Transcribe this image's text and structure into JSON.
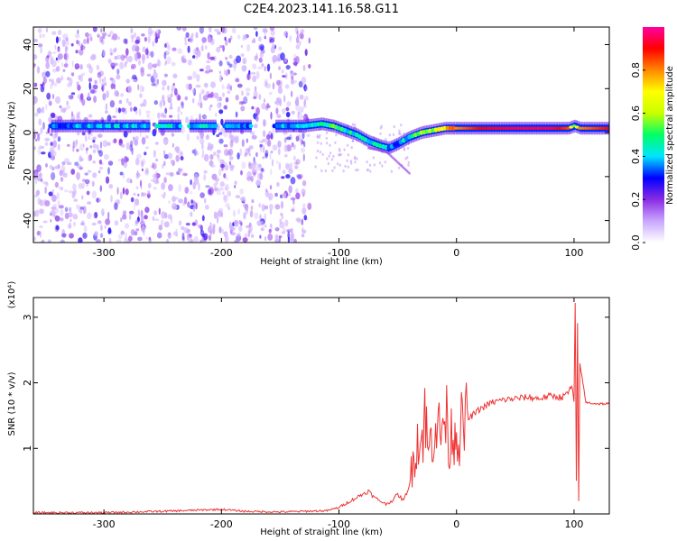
{
  "title": "C2E4.2023.141.16.58.G11",
  "chart_data": [
    {
      "type": "heatmap",
      "xlabel": "Height of straight line (km)",
      "ylabel": "Frequency (Hz)",
      "xlim": [
        -360,
        130
      ],
      "ylim": [
        -50,
        48
      ],
      "xticks": [
        -300,
        -200,
        -100,
        0,
        100
      ],
      "yticks": [
        -40,
        -20,
        0,
        20,
        40
      ],
      "colorbar": {
        "label": "Normalized spectral amplitude",
        "range": [
          0,
          1
        ],
        "ticks": [
          "0.0",
          "0.2",
          "0.4",
          "0.6",
          "0.8"
        ],
        "colors": [
          "#ffffff",
          "#c9a6ff",
          "#8a2be2",
          "#0000ff",
          "#00e5ff",
          "#00ff66",
          "#c8ff00",
          "#ffff00",
          "#ff8800",
          "#ff0000",
          "#ff00a0"
        ]
      },
      "ridge": {
        "x": [
          -345,
          -250,
          -200,
          -150,
          -130,
          -115,
          -105,
          -95,
          -85,
          -75,
          -65,
          -58,
          -50,
          -40,
          -30,
          -20,
          -10,
          0,
          20,
          50,
          80,
          95,
          100,
          105,
          130
        ],
        "y": [
          3,
          3,
          3,
          3,
          3,
          4,
          3,
          1,
          -1,
          -4,
          -6,
          -7,
          -5,
          -2,
          0,
          1,
          2,
          2,
          2,
          2,
          2,
          2,
          3,
          2,
          2
        ],
        "amplitude": [
          0.35,
          0.4,
          0.4,
          0.35,
          0.4,
          0.45,
          0.5,
          0.45,
          0.45,
          0.4,
          0.45,
          0.4,
          0.35,
          0.45,
          0.55,
          0.6,
          0.7,
          0.8,
          0.9,
          0.95,
          0.95,
          0.85,
          0.55,
          0.8,
          0.9
        ]
      },
      "noise_region_x": [
        -360,
        -125
      ]
    },
    {
      "type": "line",
      "xlabel": "Height of straight line (km)",
      "ylabel": "SNR (10 * v/v)",
      "y_multiplier": "(x10⁴)",
      "xlim": [
        -360,
        130
      ],
      "ylim": [
        0,
        3.3
      ],
      "xticks": [
        -300,
        -200,
        -100,
        0,
        100
      ],
      "yticks": [
        1,
        2,
        3
      ],
      "series": [
        {
          "color": "#ee3333",
          "x": [
            -360,
            -300,
            -250,
            -200,
            -180,
            -150,
            -130,
            -110,
            -100,
            -90,
            -80,
            -75,
            -70,
            -65,
            -60,
            -55,
            -50,
            -45,
            -40,
            -37,
            -34,
            -30,
            -27,
            -24,
            -20,
            -17,
            -14,
            -10,
            -6,
            -2,
            0,
            5,
            10,
            20,
            30,
            40,
            50,
            60,
            70,
            80,
            90,
            95,
            98,
            100,
            101,
            102,
            103,
            104,
            105,
            110,
            120,
            130
          ],
          "y": [
            0.02,
            0.02,
            0.04,
            0.07,
            0.04,
            0.03,
            0.04,
            0.05,
            0.1,
            0.2,
            0.3,
            0.35,
            0.25,
            0.2,
            0.15,
            0.2,
            0.3,
            0.2,
            0.45,
            0.8,
            1.2,
            1.05,
            1.55,
            0.9,
            1.3,
            1.5,
            1.15,
            1.55,
            1.1,
            1.35,
            1.25,
            1.3,
            1.45,
            1.6,
            1.7,
            1.74,
            1.76,
            1.78,
            1.76,
            1.8,
            1.78,
            1.85,
            1.95,
            1.7,
            3.2,
            0.5,
            2.9,
            0.2,
            2.3,
            1.7,
            1.68,
            1.68
          ]
        }
      ]
    }
  ]
}
